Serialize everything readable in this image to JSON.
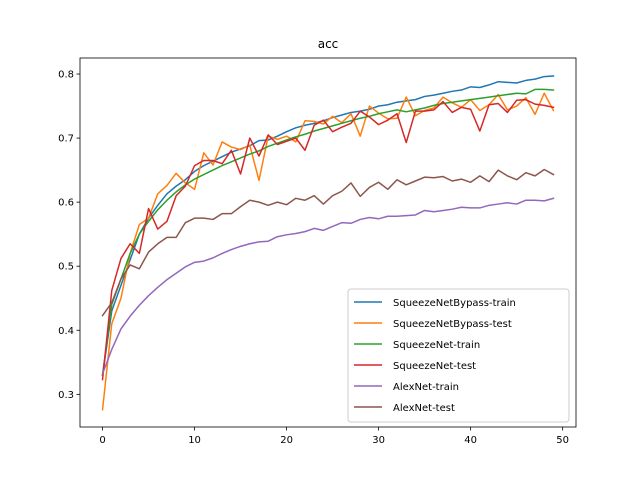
{
  "chart_data": {
    "type": "line",
    "title": "acc",
    "xlabel": "",
    "ylabel": "",
    "xlim": [
      -2.45,
      51.45
    ],
    "ylim": [
      0.249,
      0.825
    ],
    "x_ticks": [
      0,
      10,
      20,
      30,
      40,
      50
    ],
    "y_ticks": [
      0.3,
      0.4,
      0.5,
      0.6,
      0.7,
      0.8
    ],
    "x_tick_labels": [
      "0",
      "10",
      "20",
      "30",
      "40",
      "50"
    ],
    "y_tick_labels": [
      "0.3",
      "0.4",
      "0.5",
      "0.6",
      "0.7",
      "0.8"
    ],
    "grid": false,
    "legend_position": "lower-right",
    "x": [
      0,
      1,
      2,
      3,
      4,
      5,
      6,
      7,
      8,
      9,
      10,
      11,
      12,
      13,
      14,
      15,
      16,
      17,
      18,
      19,
      20,
      21,
      22,
      23,
      24,
      25,
      26,
      27,
      28,
      29,
      30,
      31,
      32,
      33,
      34,
      35,
      36,
      37,
      38,
      39,
      40,
      41,
      42,
      43,
      44,
      45,
      46,
      47,
      48,
      49
    ],
    "series": [
      {
        "name": "SqueezeNetBypass-train",
        "color": "#1f77b4",
        "values": [
          0.33,
          0.43,
          0.47,
          0.51,
          0.55,
          0.575,
          0.595,
          0.613,
          0.625,
          0.635,
          0.648,
          0.657,
          0.664,
          0.671,
          0.678,
          0.683,
          0.688,
          0.696,
          0.697,
          0.703,
          0.71,
          0.716,
          0.72,
          0.723,
          0.727,
          0.732,
          0.736,
          0.74,
          0.742,
          0.745,
          0.75,
          0.752,
          0.756,
          0.758,
          0.76,
          0.765,
          0.767,
          0.77,
          0.773,
          0.775,
          0.78,
          0.779,
          0.783,
          0.788,
          0.787,
          0.786,
          0.79,
          0.792,
          0.796,
          0.797
        ]
      },
      {
        "name": "SqueezeNetBypass-test",
        "color": "#ff7f0e",
        "values": [
          0.276,
          0.41,
          0.45,
          0.52,
          0.565,
          0.575,
          0.613,
          0.626,
          0.645,
          0.63,
          0.62,
          0.677,
          0.658,
          0.694,
          0.686,
          0.682,
          0.689,
          0.634,
          0.703,
          0.698,
          0.703,
          0.694,
          0.727,
          0.726,
          0.722,
          0.734,
          0.724,
          0.738,
          0.703,
          0.75,
          0.739,
          0.73,
          0.731,
          0.764,
          0.735,
          0.743,
          0.747,
          0.764,
          0.755,
          0.748,
          0.76,
          0.743,
          0.752,
          0.768,
          0.744,
          0.75,
          0.763,
          0.737,
          0.77,
          0.743
        ]
      },
      {
        "name": "SqueezeNet-train",
        "color": "#2ca02c",
        "values": [
          0.33,
          0.44,
          0.48,
          0.52,
          0.55,
          0.57,
          0.588,
          0.603,
          0.616,
          0.627,
          0.636,
          0.643,
          0.65,
          0.657,
          0.663,
          0.669,
          0.675,
          0.68,
          0.687,
          0.692,
          0.697,
          0.702,
          0.706,
          0.711,
          0.715,
          0.719,
          0.723,
          0.727,
          0.731,
          0.734,
          0.738,
          0.741,
          0.744,
          0.741,
          0.744,
          0.747,
          0.751,
          0.754,
          0.756,
          0.758,
          0.76,
          0.762,
          0.764,
          0.766,
          0.768,
          0.77,
          0.769,
          0.776,
          0.776,
          0.775
        ]
      },
      {
        "name": "SqueezeNet-test",
        "color": "#d62728",
        "values": [
          0.323,
          0.462,
          0.512,
          0.535,
          0.52,
          0.59,
          0.558,
          0.57,
          0.61,
          0.625,
          0.657,
          0.665,
          0.665,
          0.66,
          0.681,
          0.644,
          0.7,
          0.672,
          0.705,
          0.69,
          0.695,
          0.7,
          0.681,
          0.72,
          0.728,
          0.71,
          0.717,
          0.723,
          0.742,
          0.733,
          0.721,
          0.728,
          0.738,
          0.693,
          0.742,
          0.742,
          0.744,
          0.757,
          0.74,
          0.748,
          0.745,
          0.711,
          0.752,
          0.754,
          0.74,
          0.759,
          0.76,
          0.753,
          0.751,
          0.748
        ]
      },
      {
        "name": "AlexNet-train",
        "color": "#9467bd",
        "values": [
          0.332,
          0.37,
          0.402,
          0.422,
          0.439,
          0.454,
          0.467,
          0.479,
          0.489,
          0.499,
          0.506,
          0.508,
          0.513,
          0.52,
          0.526,
          0.531,
          0.535,
          0.538,
          0.539,
          0.546,
          0.549,
          0.551,
          0.554,
          0.559,
          0.556,
          0.562,
          0.568,
          0.567,
          0.573,
          0.576,
          0.574,
          0.578,
          0.578,
          0.579,
          0.58,
          0.587,
          0.585,
          0.587,
          0.589,
          0.592,
          0.591,
          0.591,
          0.595,
          0.597,
          0.599,
          0.597,
          0.603,
          0.603,
          0.602,
          0.606
        ]
      },
      {
        "name": "AlexNet-test",
        "color": "#8c564b",
        "values": [
          0.423,
          0.443,
          0.48,
          0.502,
          0.496,
          0.522,
          0.535,
          0.545,
          0.545,
          0.568,
          0.575,
          0.575,
          0.573,
          0.582,
          0.582,
          0.593,
          0.603,
          0.6,
          0.595,
          0.6,
          0.596,
          0.606,
          0.603,
          0.61,
          0.597,
          0.61,
          0.617,
          0.63,
          0.609,
          0.623,
          0.631,
          0.62,
          0.635,
          0.627,
          0.633,
          0.639,
          0.638,
          0.64,
          0.633,
          0.636,
          0.631,
          0.641,
          0.632,
          0.65,
          0.641,
          0.635,
          0.646,
          0.641,
          0.651,
          0.643
        ]
      }
    ]
  }
}
